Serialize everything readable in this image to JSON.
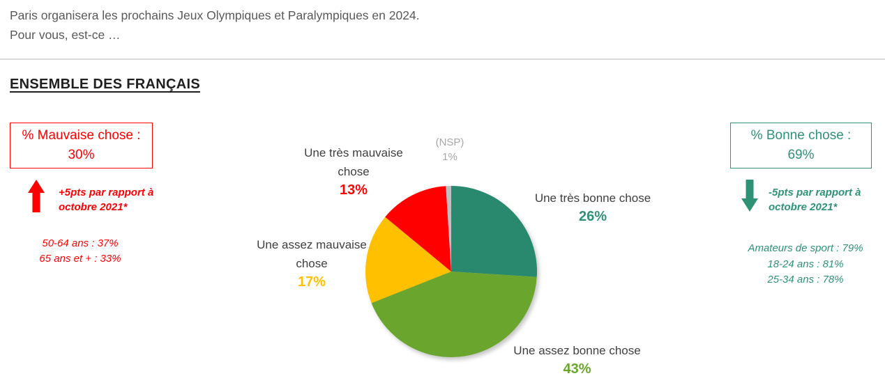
{
  "header": {
    "line1": "Paris organisera les prochains Jeux Olympiques et Paralympiques en 2024.",
    "line2": "Pour vous, est-ce …"
  },
  "section_title": "ENSEMBLE DES FRANÇAIS",
  "left_panel": {
    "box_label": "% Mauvaise chose :",
    "box_value": "30%",
    "trend_note_line1": "+5pts par rapport à",
    "trend_note_line2": "octobre 2021*",
    "details": [
      "50-64 ans : 37%",
      "65 ans et + : 33%"
    ],
    "arrow_direction": "up",
    "color": "#FF0000"
  },
  "right_panel": {
    "box_label": "% Bonne chose :",
    "box_value": "69%",
    "trend_note_line1": "-5pts par rapport à",
    "trend_note_line2": "octobre 2021*",
    "details": [
      "Amateurs de sport : 79%",
      "18-24 ans : 81%",
      "25-34 ans : 78%"
    ],
    "arrow_direction": "down",
    "color": "#2E9277"
  },
  "chart_data": {
    "type": "pie",
    "categories": [
      "Une très bonne chose",
      "Une assez bonne chose",
      "Une assez mauvaise chose",
      "Une très mauvaise chose",
      "(NSP)"
    ],
    "values": [
      26,
      43,
      17,
      13,
      1
    ],
    "colors": [
      "#28896F",
      "#6AA62D",
      "#FFC000",
      "#FF0000",
      "#BFBFBF"
    ],
    "start_angle_deg": -90,
    "direction": "clockwise",
    "legend": "none",
    "data_labels_outside": true
  },
  "pie_labels": {
    "tres_bonne": {
      "line1": "Une très bonne chose",
      "value": "26%"
    },
    "assez_bonne": {
      "line1": "Une assez bonne chose",
      "value": "43%"
    },
    "assez_mauvaise": {
      "line1": "Une assez mauvaise",
      "line2": "chose",
      "value": "17%"
    },
    "tres_mauvaise": {
      "line1": "Une très mauvaise",
      "line2": "chose",
      "value": "13%"
    },
    "nsp": {
      "line1": "(NSP)",
      "value": "1%"
    }
  },
  "palette": {
    "red": "#FF0000",
    "teal_dark": "#28896F",
    "teal_text": "#2E9277",
    "green": "#6AA62D",
    "yellow": "#FFC000",
    "gray_slice": "#BFBFBF",
    "gray_text": "#A6A6A6",
    "body_text": "#595959",
    "divider": "#D9D9D9"
  }
}
